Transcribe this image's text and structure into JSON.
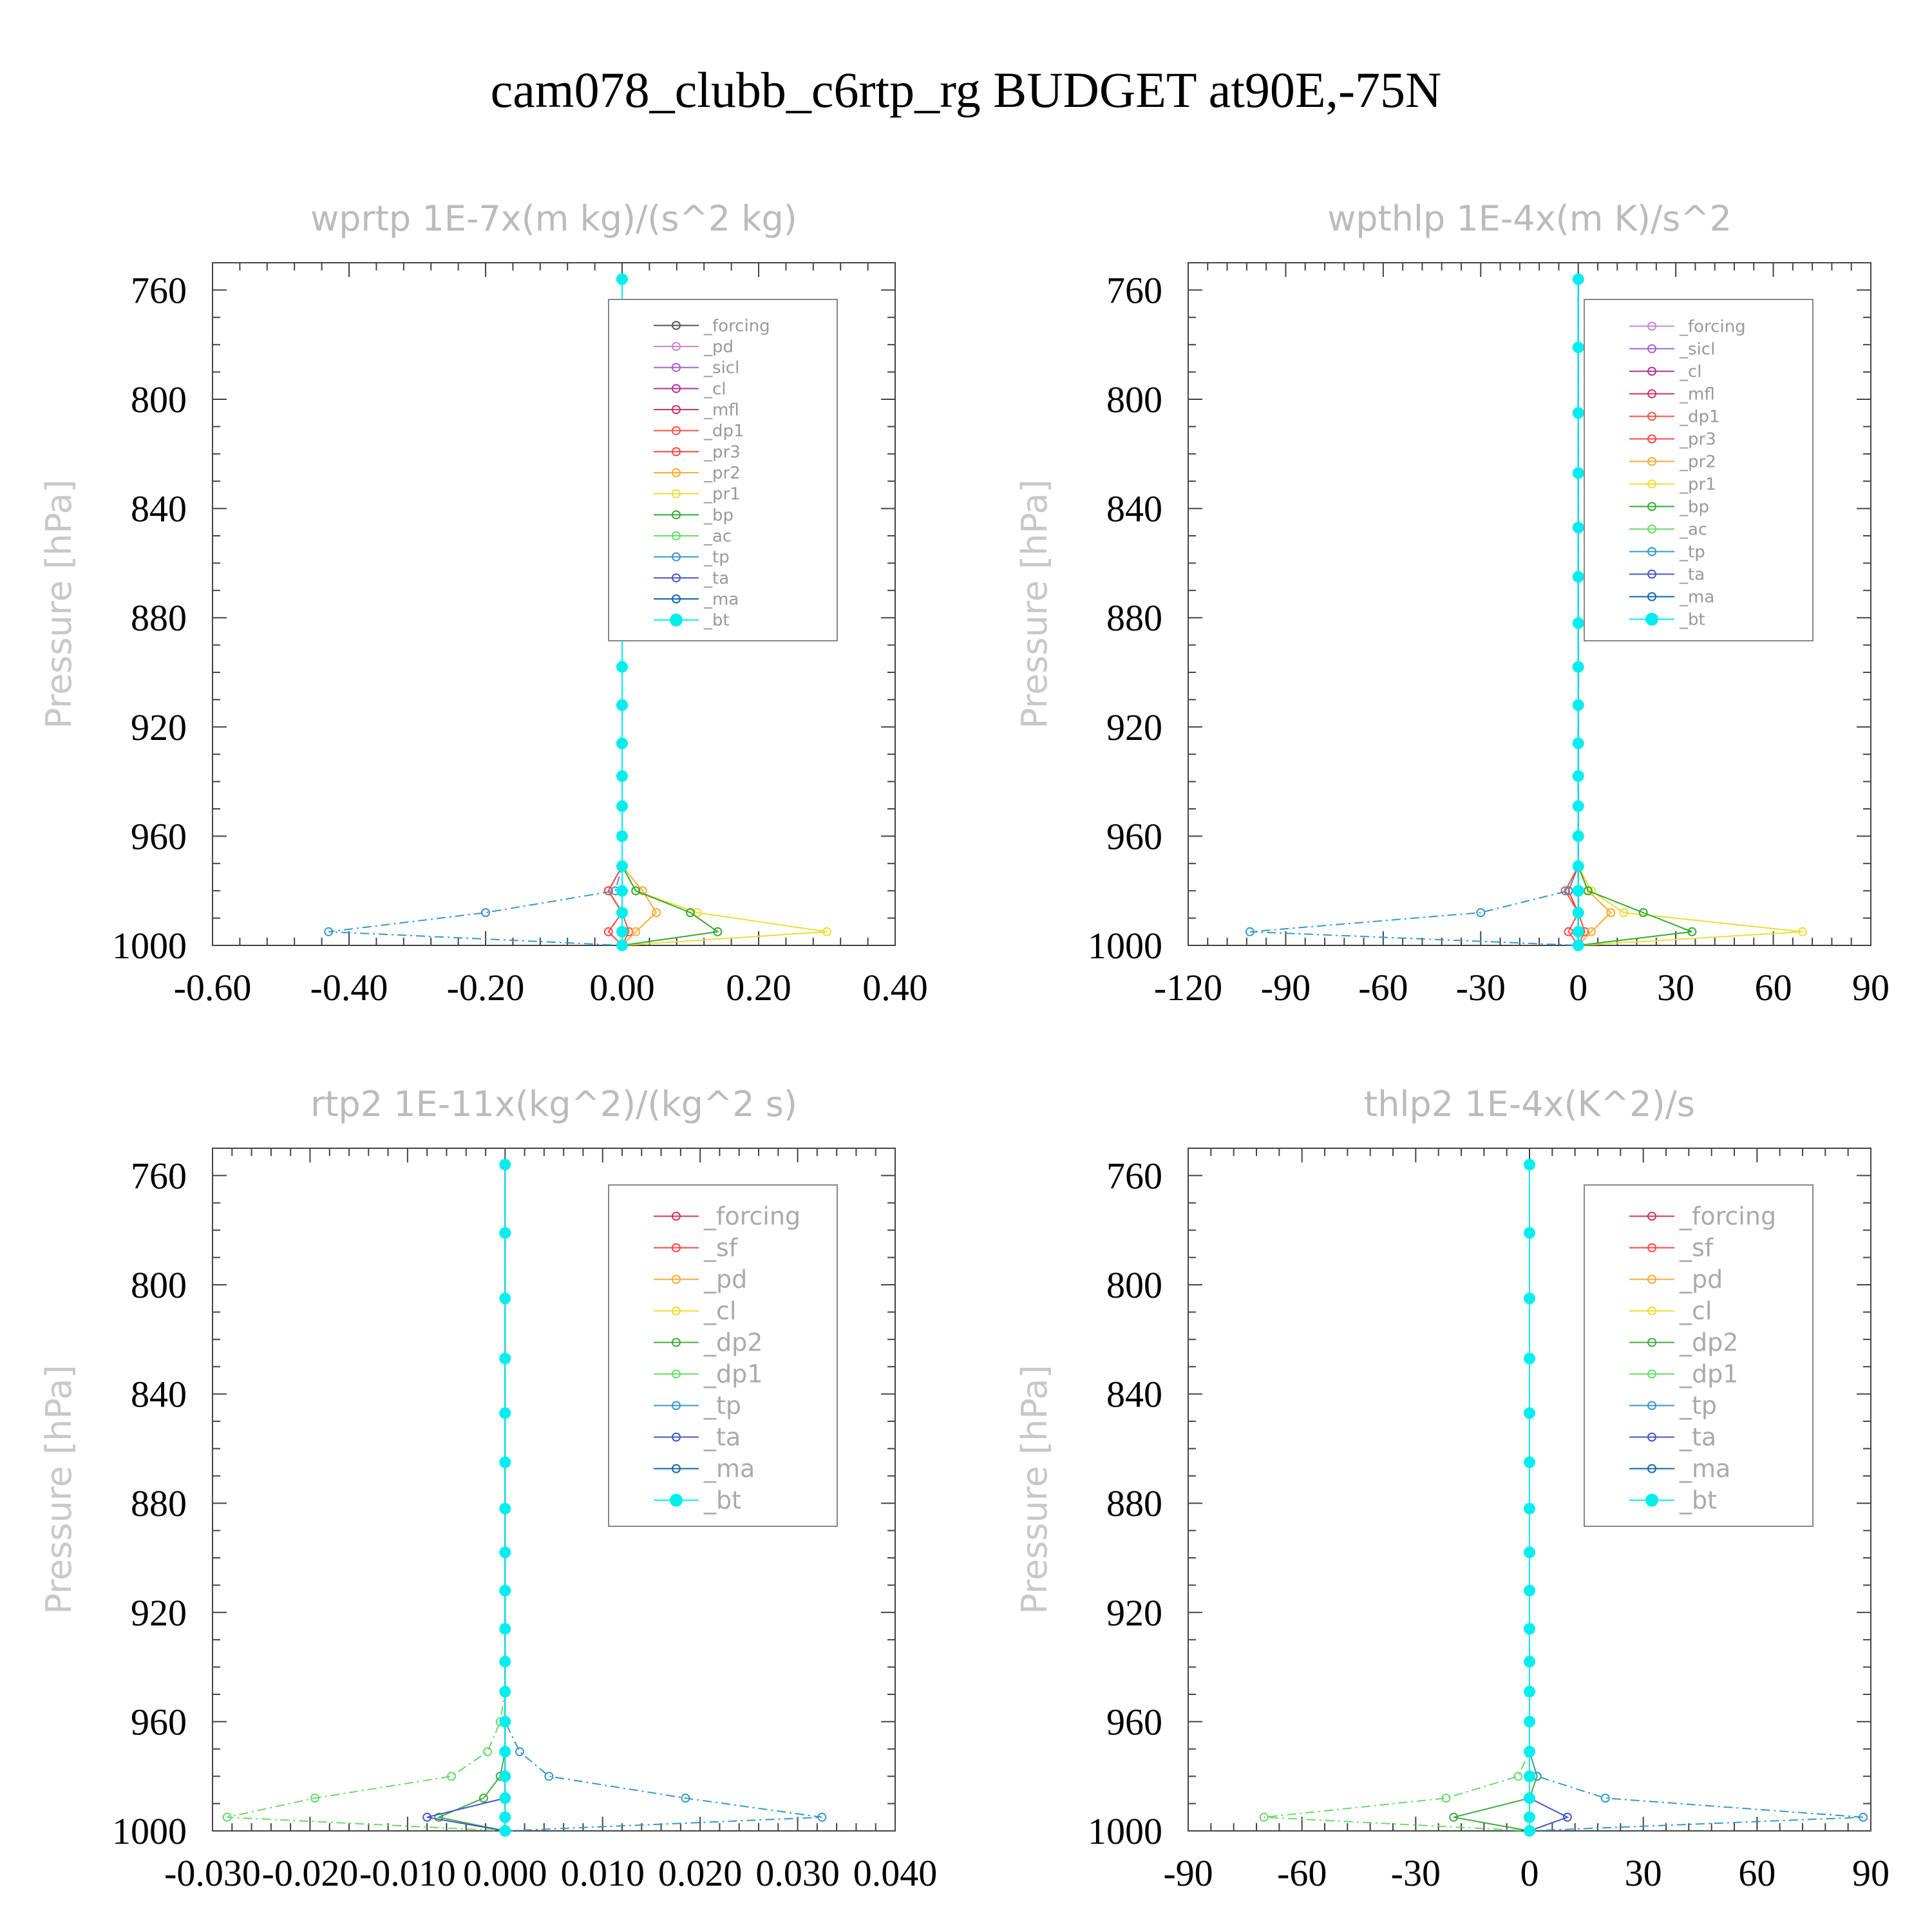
{
  "title": "cam078_clubb_c6rtp_rg  BUDGET at90E,-75N",
  "colors": {
    "forcing": "#555555",
    "pd": "#cc88cc",
    "sicl": "#9966cc",
    "cl": "#aa3399",
    "mfl": "#cc3366",
    "dp1": "#ee5544",
    "dp2": "#44aa44",
    "pr3": "#ff4444",
    "pr2": "#ffaa33",
    "pr1": "#eedd33",
    "bp": "#33aa33",
    "ac": "#66dd66",
    "tp": "#3399cc",
    "ta": "#4455cc",
    "ma": "#1166aa",
    "bt": "#00eeee",
    "sf": "#ff4444",
    "frame": "#444444"
  },
  "pressure_levels": [
    756,
    781,
    805,
    827,
    847,
    865,
    882,
    898,
    912,
    926,
    938,
    949,
    960,
    971,
    980,
    988,
    995,
    1000
  ],
  "chart_data": [
    {
      "type": "line",
      "title": "wprtp  1E-7x(m kg)/(s^2 kg)",
      "ylabel": "Pressure [hPa]",
      "xlim": [
        -0.6,
        0.4
      ],
      "ylim": [
        1000,
        750
      ],
      "grid": false,
      "xticks": [
        -0.6,
        -0.4,
        -0.2,
        0.0,
        0.2,
        0.4
      ],
      "xtick_labels": [
        "-0.60",
        "-0.40",
        "-0.20",
        "0.00",
        "0.20",
        "0.40"
      ],
      "yticks": [
        760,
        800,
        840,
        880,
        920,
        960,
        1000
      ],
      "ytick_labels": [
        "760",
        "800",
        "840",
        "880",
        "920",
        "960",
        "1000"
      ],
      "legend_position": "top-right",
      "legend": [
        "_forcing",
        "_pd",
        "_sicl",
        "_cl",
        "_mfl",
        "_dp1",
        "_pr3",
        "_pr2",
        "_pr1",
        "_bp",
        "_ac",
        "_tp",
        "_ta",
        "_ma",
        "_bt"
      ],
      "series_keys": [
        "forcing",
        "pd",
        "sicl",
        "cl",
        "mfl",
        "dp1",
        "pr3",
        "pr2",
        "pr1",
        "bp",
        "ac",
        "tp",
        "ta",
        "ma",
        "bt"
      ],
      "series_values": [
        {
          "key": "tp",
          "values": {
            "980": -0.01,
            "988": -0.2,
            "995": -0.43,
            "1000": 0.0
          }
        },
        {
          "key": "pr1",
          "values": {
            "980": 0.02,
            "988": 0.11,
            "995": 0.3,
            "1000": 0.0
          }
        },
        {
          "key": "bp",
          "values": {
            "980": 0.02,
            "988": 0.1,
            "995": 0.14,
            "1000": 0.0
          }
        },
        {
          "key": "pr2",
          "values": {
            "980": 0.03,
            "988": 0.05,
            "995": 0.02,
            "1000": 0.0
          }
        },
        {
          "key": "dp1",
          "values": {
            "980": -0.02,
            "988": 0.0,
            "995": 0.01,
            "1000": 0.0
          }
        },
        {
          "key": "pr3",
          "values": {
            "980": -0.02,
            "988": 0.0,
            "995": -0.02,
            "1000": 0.0
          }
        }
      ]
    },
    {
      "type": "line",
      "title": "wpthlp  1E-4x(m K)/s^2",
      "ylabel": "Pressure [hPa]",
      "xlim": [
        -120,
        90
      ],
      "ylim": [
        1000,
        750
      ],
      "grid": false,
      "xticks": [
        -120,
        -90,
        -60,
        -30,
        0,
        30,
        60,
        90
      ],
      "xtick_labels": [
        "-120",
        "-90",
        "-60",
        "-30",
        "0",
        "30",
        "60",
        "90"
      ],
      "yticks": [
        760,
        800,
        840,
        880,
        920,
        960,
        1000
      ],
      "ytick_labels": [
        "760",
        "800",
        "840",
        "880",
        "920",
        "960",
        "1000"
      ],
      "legend_position": "top-right",
      "legend": [
        "_forcing",
        "_sicl",
        "_cl",
        "_mfl",
        "_dp1",
        "_pr3",
        "_pr2",
        "_pr1",
        "_bp",
        "_ac",
        "_tp",
        "_ta",
        "_ma",
        "_bt"
      ],
      "series_keys": [
        "pd",
        "sicl",
        "cl",
        "mfl",
        "dp1",
        "pr3",
        "pr2",
        "pr1",
        "bp",
        "ac",
        "tp",
        "ta",
        "ma",
        "bt"
      ],
      "series_values": [
        {
          "key": "tp",
          "values": {
            "980": -3,
            "988": -30,
            "995": -101,
            "1000": 0
          }
        },
        {
          "key": "pr1",
          "values": {
            "980": 4,
            "988": 14,
            "995": 69,
            "1000": 0
          }
        },
        {
          "key": "bp",
          "values": {
            "980": 3,
            "988": 20,
            "995": 35,
            "1000": 0
          }
        },
        {
          "key": "pr2",
          "values": {
            "980": 3,
            "988": 10,
            "995": 4,
            "1000": 0
          }
        },
        {
          "key": "dp1",
          "values": {
            "980": -4,
            "988": 0,
            "995": 2,
            "1000": 0
          }
        },
        {
          "key": "pr3",
          "values": {
            "980": -3,
            "988": 0,
            "995": -3,
            "1000": 0
          }
        }
      ]
    },
    {
      "type": "line",
      "title": "rtp2  1E-11x(kg^2)/(kg^2 s)",
      "ylabel": "Pressure [hPa]",
      "xlim": [
        -0.03,
        0.04
      ],
      "ylim": [
        1000,
        750
      ],
      "grid": false,
      "xticks": [
        -0.03,
        -0.02,
        -0.01,
        0.0,
        0.01,
        0.02,
        0.03,
        0.04
      ],
      "xtick_labels": [
        "-0.030",
        "-0.020",
        "-0.010",
        "0.000",
        "0.010",
        "0.020",
        "0.030",
        "0.040"
      ],
      "yticks": [
        760,
        800,
        840,
        880,
        920,
        960,
        1000
      ],
      "ytick_labels": [
        "760",
        "800",
        "840",
        "880",
        "920",
        "960",
        "1000"
      ],
      "legend_position": "top-right",
      "legend": [
        "_forcing",
        "_sf",
        "_pd",
        "_cl",
        "_dp2",
        "_dp1",
        "_tp",
        "_ta",
        "_ma",
        "_bt"
      ],
      "series_keys": [
        "mfl",
        "sf",
        "pr2",
        "pr1",
        "dp2",
        "ac",
        "tp",
        "ta",
        "ma",
        "bt"
      ],
      "series_values": [
        {
          "key": "ac",
          "values": {
            "960": -0.0005,
            "971": -0.0018,
            "980": -0.0055,
            "988": -0.0195,
            "995": -0.0285,
            "1000": 0.0
          }
        },
        {
          "key": "tp",
          "values": {
            "971": 0.0015,
            "980": 0.0045,
            "988": 0.0185,
            "995": 0.0325,
            "1000": 0.0
          }
        },
        {
          "key": "dp2",
          "values": {
            "971": 0.0,
            "980": -0.0005,
            "988": -0.0022,
            "995": -0.0068,
            "1000": 0.0
          }
        },
        {
          "key": "ta",
          "values": {
            "995": -0.008,
            "1000": 0.0
          }
        }
      ]
    },
    {
      "type": "line",
      "title": "thlp2  1E-4x(K^2)/s",
      "ylabel": "Pressure [hPa]",
      "xlim": [
        -90,
        90
      ],
      "ylim": [
        1000,
        750
      ],
      "grid": false,
      "xticks": [
        -90,
        -60,
        -30,
        0,
        30,
        60,
        90
      ],
      "xtick_labels": [
        "-90",
        "-60",
        "-30",
        "0",
        "30",
        "60",
        "90"
      ],
      "yticks": [
        760,
        800,
        840,
        880,
        920,
        960,
        1000
      ],
      "ytick_labels": [
        "760",
        "800",
        "840",
        "880",
        "920",
        "960",
        "1000"
      ],
      "legend_position": "top-right",
      "legend": [
        "_forcing",
        "_sf",
        "_pd",
        "_cl",
        "_dp2",
        "_dp1",
        "_tp",
        "_ta",
        "_ma",
        "_bt"
      ],
      "series_keys": [
        "mfl",
        "sf",
        "pr2",
        "pr1",
        "dp2",
        "ac",
        "tp",
        "ta",
        "ma",
        "bt"
      ],
      "series_values": [
        {
          "key": "ac",
          "values": {
            "980": -3,
            "988": -22,
            "995": -70,
            "1000": 0
          }
        },
        {
          "key": "tp",
          "values": {
            "980": 2,
            "988": 20,
            "995": 88,
            "1000": 0
          }
        },
        {
          "key": "dp2",
          "values": {
            "980": 2,
            "988": 0,
            "995": -20,
            "1000": 0
          }
        },
        {
          "key": "ta",
          "values": {
            "995": 10,
            "1000": 0
          }
        }
      ]
    }
  ]
}
